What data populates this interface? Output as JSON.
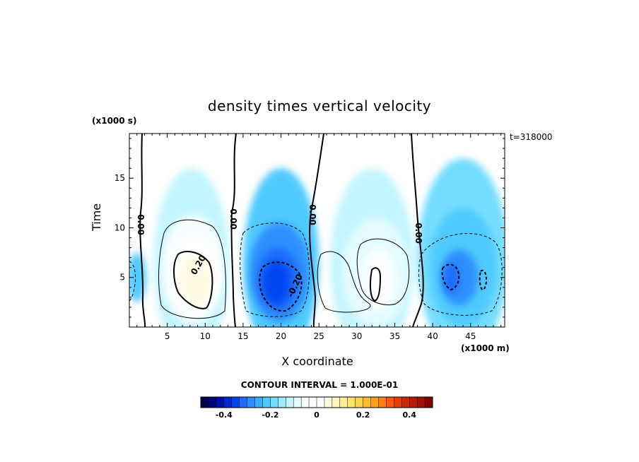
{
  "chart_data": {
    "type": "heatmap",
    "title": "density times vertical velocity",
    "xlabel": "X coordinate",
    "ylabel": "Time",
    "x_units": "(x1000 m)",
    "y_units": "(x1000 s)",
    "annotation": "t=318000",
    "xlim": [
      0,
      49.5
    ],
    "ylim": [
      0,
      19.5
    ],
    "x_ticks": [
      5,
      10,
      15,
      20,
      25,
      30,
      35,
      40,
      45
    ],
    "y_ticks": [
      5,
      10,
      15
    ],
    "contour_interval_label": "CONTOUR INTERVAL = 1.000E-01",
    "contour_labels": [
      "0.00",
      "0.00",
      "0.00",
      "0.00",
      "0.20",
      "-0.20"
    ],
    "colorbar": {
      "min": -0.5,
      "max": 0.5,
      "step": 0.05,
      "tick_values": [
        -0.4,
        -0.2,
        0,
        0.2,
        0.4
      ],
      "tick_labels": [
        "-0.4",
        "-0.2",
        "0",
        "0.2",
        "0.4"
      ],
      "colors": [
        "#00004d",
        "#00047a",
        "#0010a6",
        "#0026d1",
        "#0046f2",
        "#1c6cff",
        "#2f8fff",
        "#3daeff",
        "#4fcaff",
        "#75ddff",
        "#9cebff",
        "#c3f5ff",
        "#e3fbff",
        "#f8feff",
        "#ffffff",
        "#ffffff",
        "#fffbe3",
        "#fff6bf",
        "#ffef9a",
        "#ffe46f",
        "#ffd34a",
        "#ffbd2e",
        "#ffa11a",
        "#ff8010",
        "#fa5a0a",
        "#e83c06",
        "#d02803",
        "#b81a00",
        "#a00f00",
        "#820600"
      ]
    },
    "cells": [
      {
        "x": 8.2,
        "y": 6.5,
        "rx": 5.0,
        "ry": 9.5,
        "value": 0.08
      },
      {
        "x": 8.4,
        "y": 5.8,
        "rx": 4.2,
        "ry": 5.5,
        "value": 0.16
      },
      {
        "x": 8.6,
        "y": 5.2,
        "rx": 3.2,
        "ry": 3.6,
        "value": 0.25
      },
      {
        "x": 8.8,
        "y": 4.8,
        "rx": 2.2,
        "ry": 2.6,
        "value": 0.31
      },
      {
        "x": 20.0,
        "y": 6.5,
        "rx": 5.0,
        "ry": 9.5,
        "value": -0.08
      },
      {
        "x": 19.8,
        "y": 5.5,
        "rx": 4.0,
        "ry": 5.0,
        "value": -0.16
      },
      {
        "x": 19.6,
        "y": 4.8,
        "rx": 2.8,
        "ry": 3.2,
        "value": -0.24
      },
      {
        "x": 19.4,
        "y": 4.5,
        "rx": 1.8,
        "ry": 2.2,
        "value": -0.29
      },
      {
        "x": 32.0,
        "y": 6.5,
        "rx": 5.5,
        "ry": 9.5,
        "value": 0.06
      },
      {
        "x": 32.5,
        "y": 5.5,
        "rx": 4.5,
        "ry": 5.5,
        "value": 0.12
      },
      {
        "x": 32.8,
        "y": 4.8,
        "rx": 2.5,
        "ry": 3.2,
        "value": 0.18
      },
      {
        "x": 33.0,
        "y": 4.8,
        "rx": 1.0,
        "ry": 2.0,
        "value": 0.22
      },
      {
        "x": 44.0,
        "y": 7.0,
        "rx": 6.0,
        "ry": 10.0,
        "value": -0.05
      },
      {
        "x": 44.0,
        "y": 6.0,
        "rx": 4.5,
        "ry": 6.0,
        "value": -0.1
      },
      {
        "x": 43.5,
        "y": 5.0,
        "rx": 2.5,
        "ry": 2.8,
        "value": -0.16
      },
      {
        "x": 42.5,
        "y": 4.9,
        "rx": 1.0,
        "ry": 1.5,
        "value": -0.21
      },
      {
        "x": 1.0,
        "y": 5.0,
        "rx": 1.2,
        "ry": 2.5,
        "value": -0.07
      }
    ]
  }
}
